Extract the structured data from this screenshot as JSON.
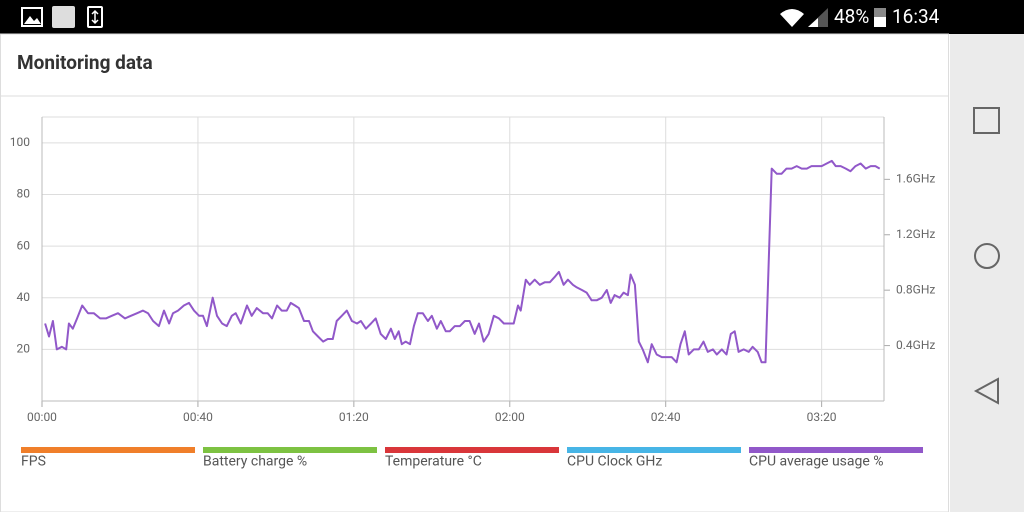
{
  "status_bar": {
    "battery": "48%",
    "time": "16:34"
  },
  "header": {
    "title": "Monitoring data"
  },
  "chart_data": {
    "type": "line",
    "x": [
      0.8,
      1.8,
      2.8,
      3.8,
      5.1,
      6.2,
      6.9,
      7.9,
      9.0,
      10.3,
      11.8,
      13.3,
      14.9,
      16.4,
      17.9,
      19.5,
      21.3,
      22.8,
      24.4,
      25.9,
      27.2,
      28.5,
      30.0,
      31.3,
      32.6,
      33.6,
      34.9,
      36.4,
      37.7,
      39.0,
      40.3,
      41.3,
      42.3,
      43.8,
      44.9,
      46.2,
      47.4,
      48.7,
      49.7,
      51.0,
      52.6,
      53.8,
      55.1,
      56.7,
      57.9,
      59.0,
      60.3,
      61.5,
      62.8,
      63.8,
      64.9,
      65.9,
      67.2,
      68.5,
      69.5,
      70.8,
      72.1,
      73.3,
      74.6,
      75.6,
      76.9,
      78.2,
      79.5,
      80.8,
      81.8,
      83.1,
      84.4,
      85.6,
      86.9,
      88.2,
      89.5,
      90.5,
      91.5,
      92.3,
      93.3,
      94.4,
      95.4,
      96.4,
      97.7,
      99.0,
      100.0,
      101.3,
      102.3,
      103.6,
      104.6,
      105.9,
      107.2,
      108.5,
      109.7,
      111.0,
      112.1,
      113.3,
      114.6,
      115.9,
      117.2,
      118.5,
      119.7,
      121.0,
      122.1,
      122.8,
      124.1,
      125.1,
      126.4,
      127.7,
      129.0,
      130.3,
      131.5,
      132.6,
      133.8,
      134.9,
      136.2,
      137.2,
      138.5,
      139.7,
      141.0,
      142.3,
      143.6,
      144.9,
      145.9,
      146.9,
      148.2,
      149.2,
      150.3,
      151.0,
      152.1,
      153.1,
      154.1,
      155.4,
      156.4,
      157.7,
      159.0,
      160.3,
      161.5,
      162.8,
      163.8,
      164.9,
      165.9,
      167.2,
      168.5,
      169.7,
      170.8,
      172.1,
      173.1,
      174.4,
      175.6,
      176.7,
      177.7,
      178.7,
      180.0,
      181.3,
      182.3,
      183.6,
      184.6,
      185.6,
      187.2,
      188.5,
      189.7,
      191.0,
      192.3,
      193.6,
      194.9,
      196.2,
      197.4,
      198.7,
      200.0,
      201.3,
      202.6,
      203.6,
      204.9,
      206.2,
      207.4,
      208.7,
      210.0,
      211.3,
      212.6,
      213.8,
      214.9
    ],
    "series": [
      {
        "name": "FPS",
        "color": "#f07f2a"
      },
      {
        "name": "Battery charge %",
        "color": "#7dc242"
      },
      {
        "name": "Temperature °C",
        "color": "#d9363a"
      },
      {
        "name": "CPU Clock GHz",
        "color": "#47b5e6"
      },
      {
        "name": "CPU average usage %",
        "color": "#9158c9",
        "values": [
          30,
          25,
          31,
          20,
          21,
          20,
          30,
          28,
          32,
          37,
          34,
          34,
          32,
          32,
          33,
          34,
          32,
          33,
          34,
          35,
          34,
          31,
          29,
          35,
          30,
          34,
          35,
          37,
          38,
          35,
          33,
          33,
          29,
          40,
          33,
          30,
          29,
          33,
          34,
          30,
          37,
          33,
          36,
          34,
          34,
          32,
          37,
          35,
          35,
          38,
          37,
          36,
          31,
          31,
          27,
          25,
          23,
          24,
          24,
          31,
          33,
          35,
          31,
          30,
          31,
          28,
          30,
          32,
          26,
          24,
          28,
          24,
          27,
          22,
          23,
          22,
          29,
          34,
          34,
          31,
          33,
          28,
          31,
          27,
          27,
          29,
          29,
          31,
          31,
          26,
          30,
          23,
          26,
          33,
          32,
          30,
          30,
          30,
          37,
          35,
          47,
          45,
          47,
          45,
          46,
          46,
          48,
          50,
          45,
          47,
          45,
          44,
          43,
          42,
          39,
          39,
          40,
          43,
          38,
          41,
          40,
          42,
          41,
          49,
          45,
          23,
          20,
          15,
          22,
          18,
          17,
          17,
          17,
          15,
          22,
          27,
          18,
          20,
          20,
          23,
          19,
          20,
          18,
          20,
          18,
          26,
          27,
          19,
          20,
          19,
          21,
          19,
          15,
          15,
          90,
          88,
          88,
          90,
          90,
          91,
          90,
          90,
          91,
          91,
          91,
          92,
          93,
          91,
          91,
          90,
          89,
          91,
          92,
          90,
          91,
          91,
          90
        ]
      }
    ],
    "xlim": [
      0,
      216
    ],
    "xticks": [
      {
        "value": 0,
        "label": "00:00"
      },
      {
        "value": 40,
        "label": "00:40"
      },
      {
        "value": 80,
        "label": "01:20"
      },
      {
        "value": 120,
        "label": "02:00"
      },
      {
        "value": 160,
        "label": "02:40"
      },
      {
        "value": 200,
        "label": "03:20"
      }
    ],
    "ylim": [
      0,
      110
    ],
    "yticks": [
      20,
      40,
      60,
      80,
      100
    ],
    "y2lim": [
      0,
      2.05
    ],
    "y2ticks": [
      {
        "value": 0.4,
        "label": "0.4GHz"
      },
      {
        "value": 0.8,
        "label": "0.8GHz"
      },
      {
        "value": 1.2,
        "label": "1.2GHz"
      },
      {
        "value": 1.6,
        "label": "1.6GHz"
      }
    ],
    "grid": true
  }
}
